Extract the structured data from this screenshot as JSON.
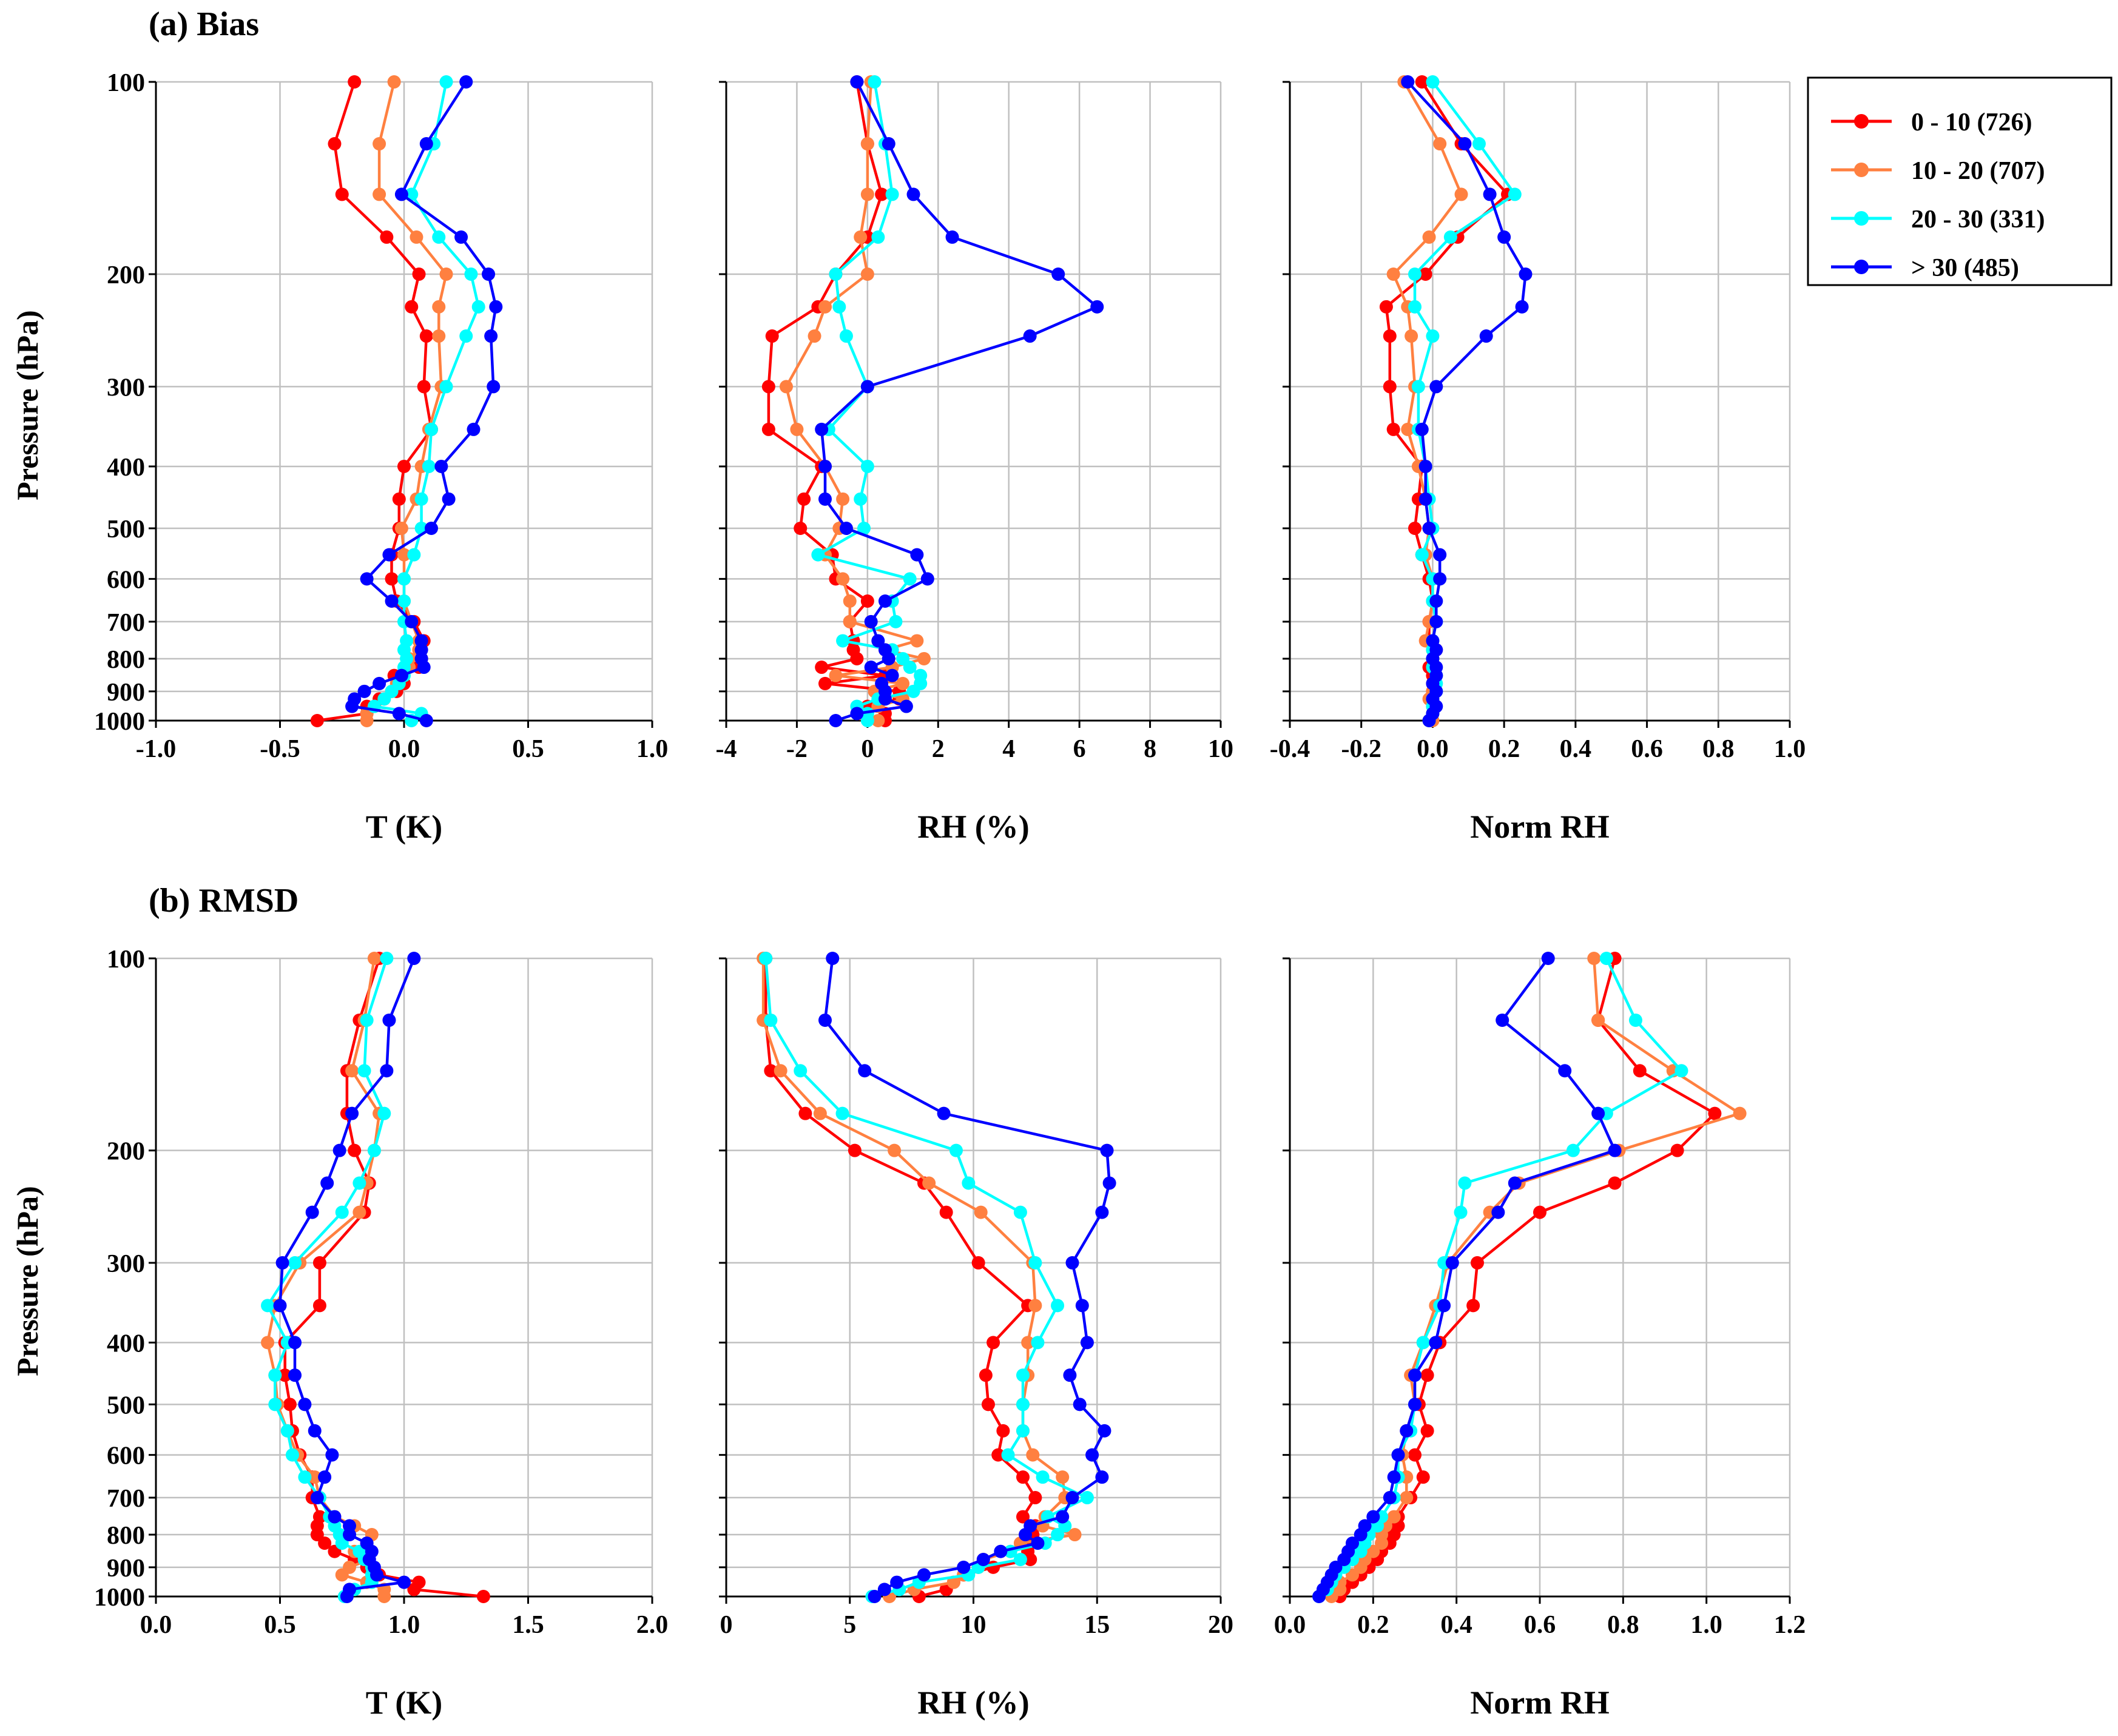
{
  "panel_titles": {
    "bias": "(a) Bias",
    "rmsd": "(b) RMSD"
  },
  "ylabel": "Pressure (hPa)",
  "pressure_levels": [
    100,
    125,
    150,
    175,
    200,
    225,
    250,
    300,
    350,
    400,
    450,
    500,
    550,
    600,
    650,
    700,
    750,
    775,
    800,
    825,
    850,
    875,
    900,
    925,
    950,
    975,
    1000
  ],
  "y_ticks": [
    100,
    200,
    300,
    400,
    500,
    600,
    700,
    800,
    900,
    1000
  ],
  "legend": [
    {
      "label": "0 - 10 (726)",
      "color": "#ff0000"
    },
    {
      "label": "10 - 20 (707)",
      "color": "#ff8040"
    },
    {
      "label": "20 - 30 (331)",
      "color": "#00ffff"
    },
    {
      "label": "> 30 (485)",
      "color": "#0000ff"
    }
  ],
  "colors": {
    "series1": "#ff0000",
    "series2": "#ff8040",
    "series3": "#00ffff",
    "series4": "#0000ff",
    "grid": "#c0c0c0",
    "axis": "#000000"
  },
  "chart_data": [
    {
      "type": "line",
      "row": 0,
      "col": 0,
      "xlabel": "T (K)",
      "xlim": [
        -1.0,
        1.0
      ],
      "xticks": [
        -1.0,
        -0.5,
        0.0,
        0.5,
        1.0
      ],
      "xtick_decimals": 1,
      "series": [
        {
          "name": "0 - 10 (726)",
          "values": [
            -0.2,
            -0.28,
            -0.25,
            -0.07,
            0.06,
            0.03,
            0.09,
            0.08,
            0.11,
            0.0,
            -0.02,
            -0.02,
            -0.05,
            -0.05,
            -0.03,
            0.04,
            0.08,
            0.06,
            0.07,
            0.06,
            -0.04,
            0.0,
            -0.03,
            -0.1,
            -0.15,
            -0.15,
            -0.35
          ]
        },
        {
          "name": "10 - 20 (707)",
          "values": [
            -0.04,
            -0.1,
            -0.1,
            0.05,
            0.17,
            0.14,
            0.14,
            0.15,
            0.1,
            0.07,
            0.05,
            -0.01,
            0.0,
            0.0,
            0.0,
            0.03,
            0.06,
            0.06,
            0.02,
            0.02,
            -0.01,
            -0.03,
            -0.05,
            -0.08,
            -0.12,
            -0.15,
            -0.15
          ]
        },
        {
          "name": "20 - 30 (331)",
          "values": [
            0.17,
            0.12,
            0.03,
            0.14,
            0.27,
            0.3,
            0.25,
            0.17,
            0.11,
            0.1,
            0.07,
            0.07,
            0.04,
            0.0,
            0.0,
            0.0,
            0.01,
            0.0,
            0.01,
            0.0,
            0.0,
            -0.02,
            -0.05,
            -0.08,
            -0.12,
            0.07,
            0.03
          ]
        },
        {
          "name": "> 30 (485)",
          "values": [
            0.25,
            0.09,
            -0.01,
            0.23,
            0.34,
            0.37,
            0.35,
            0.36,
            0.28,
            0.15,
            0.18,
            0.11,
            -0.06,
            -0.15,
            -0.05,
            0.03,
            0.07,
            0.07,
            0.07,
            0.08,
            -0.01,
            -0.1,
            -0.16,
            -0.2,
            -0.21,
            -0.02,
            0.09
          ]
        }
      ]
    },
    {
      "type": "line",
      "row": 0,
      "col": 1,
      "xlabel": "RH (%)",
      "xlim": [
        -4,
        10
      ],
      "xticks": [
        -4,
        -2,
        0,
        2,
        4,
        6,
        8,
        10
      ],
      "xtick_decimals": 0,
      "series": [
        {
          "name": "0 - 10 (726)",
          "values": [
            -0.3,
            0.0,
            0.4,
            0.0,
            -0.9,
            -1.4,
            -2.7,
            -2.8,
            -2.8,
            -1.3,
            -1.8,
            -1.9,
            -1.0,
            -0.9,
            0.0,
            -0.5,
            -0.4,
            -0.4,
            -0.3,
            -1.3,
            0.5,
            -1.2,
            0.9,
            0.9,
            0.0,
            0.5,
            0.5
          ]
        },
        {
          "name": "10 - 20 (707)",
          "values": [
            0.1,
            0.0,
            0.0,
            -0.2,
            0.0,
            -1.2,
            -1.5,
            -2.3,
            -2.0,
            -1.2,
            -0.7,
            -0.8,
            -1.2,
            -0.7,
            -0.5,
            -0.5,
            1.4,
            0.5,
            1.6,
            0.7,
            -0.9,
            1.0,
            0.2,
            1.0,
            0.3,
            -0.2,
            0.3
          ]
        },
        {
          "name": "20 - 30 (331)",
          "values": [
            0.2,
            0.5,
            0.7,
            0.3,
            -0.9,
            -0.8,
            -0.6,
            0.0,
            -1.1,
            0.0,
            -0.2,
            -0.1,
            -1.4,
            1.2,
            0.7,
            0.8,
            -0.7,
            0.7,
            1.0,
            1.2,
            1.5,
            1.5,
            1.3,
            0.3,
            -0.3,
            0.0,
            0.0
          ]
        },
        {
          "name": "> 30 (485)",
          "values": [
            -0.3,
            0.6,
            1.3,
            2.4,
            5.4,
            6.5,
            4.6,
            0.0,
            -1.3,
            -1.2,
            -1.2,
            -0.6,
            1.4,
            1.7,
            0.5,
            0.1,
            0.3,
            0.5,
            0.6,
            0.1,
            0.7,
            0.4,
            0.5,
            0.5,
            1.1,
            -0.3,
            -0.9
          ]
        }
      ]
    },
    {
      "type": "line",
      "row": 0,
      "col": 2,
      "xlabel": "Norm RH",
      "xlim": [
        -0.4,
        1.0
      ],
      "xticks": [
        -0.4,
        -0.2,
        0.0,
        0.2,
        0.4,
        0.6,
        0.8,
        1.0
      ],
      "xtick_decimals": 1,
      "series": [
        {
          "name": "0 - 10 (726)",
          "values": [
            -0.03,
            0.08,
            0.21,
            0.07,
            -0.02,
            -0.13,
            -0.12,
            -0.12,
            -0.11,
            -0.03,
            -0.04,
            -0.05,
            -0.03,
            -0.01,
            0.0,
            -0.01,
            -0.01,
            0.0,
            0.0,
            -0.01,
            0.0,
            0.0,
            0.0,
            0.0,
            0.0,
            0.0,
            -0.01
          ]
        },
        {
          "name": "10 - 20 (707)",
          "values": [
            -0.08,
            0.02,
            0.08,
            -0.01,
            -0.11,
            -0.07,
            -0.06,
            -0.05,
            -0.07,
            -0.04,
            -0.02,
            -0.01,
            -0.02,
            0.0,
            0.0,
            -0.01,
            -0.02,
            0.01,
            0.0,
            0.0,
            0.01,
            0.0,
            0.0,
            -0.01,
            0.0,
            0.0,
            0.0
          ]
        },
        {
          "name": "20 - 30 (331)",
          "values": [
            0.0,
            0.13,
            0.23,
            0.05,
            -0.05,
            -0.05,
            0.0,
            -0.04,
            -0.04,
            -0.02,
            -0.01,
            0.0,
            -0.03,
            0.0,
            0.0,
            0.01,
            0.0,
            0.0,
            0.0,
            0.0,
            0.01,
            0.01,
            0.01,
            0.0,
            0.0,
            0.0,
            -0.01
          ]
        },
        {
          "name": "> 30 (485)",
          "values": [
            -0.07,
            0.09,
            0.16,
            0.2,
            0.26,
            0.25,
            0.15,
            0.01,
            -0.03,
            -0.02,
            -0.02,
            -0.01,
            0.02,
            0.02,
            0.01,
            0.01,
            0.0,
            0.01,
            0.0,
            0.01,
            0.01,
            0.0,
            0.01,
            0.0,
            0.01,
            0.0,
            -0.01
          ]
        }
      ]
    },
    {
      "type": "line",
      "row": 1,
      "col": 0,
      "xlabel": "T (K)",
      "xlim": [
        0.0,
        2.0
      ],
      "xticks": [
        0.0,
        0.5,
        1.0,
        1.5,
        2.0
      ],
      "xtick_decimals": 1,
      "series": [
        {
          "name": "0 - 10 (726)",
          "values": [
            0.9,
            0.82,
            0.77,
            0.77,
            0.8,
            0.86,
            0.84,
            0.66,
            0.66,
            0.52,
            0.52,
            0.54,
            0.55,
            0.58,
            0.63,
            0.63,
            0.66,
            0.65,
            0.65,
            0.68,
            0.72,
            0.8,
            0.85,
            0.9,
            1.06,
            1.04,
            1.32
          ]
        },
        {
          "name": "10 - 20 (707)",
          "values": [
            0.88,
            0.84,
            0.79,
            0.9,
            0.88,
            0.85,
            0.82,
            0.58,
            0.48,
            0.45,
            0.48,
            0.49,
            0.53,
            0.57,
            0.64,
            0.66,
            0.72,
            0.8,
            0.87,
            0.85,
            0.8,
            0.86,
            0.78,
            0.75,
            0.85,
            0.92,
            0.92
          ]
        },
        {
          "name": "20 - 30 (331)",
          "values": [
            0.93,
            0.85,
            0.84,
            0.92,
            0.88,
            0.82,
            0.75,
            0.56,
            0.45,
            0.53,
            0.48,
            0.48,
            0.53,
            0.55,
            0.6,
            0.66,
            0.7,
            0.72,
            0.74,
            0.75,
            0.82,
            0.84,
            0.87,
            0.87,
            0.87,
            0.8,
            0.76
          ]
        },
        {
          "name": "> 30 (485)",
          "values": [
            1.04,
            0.94,
            0.93,
            0.79,
            0.74,
            0.69,
            0.63,
            0.51,
            0.5,
            0.56,
            0.56,
            0.6,
            0.64,
            0.71,
            0.68,
            0.65,
            0.72,
            0.78,
            0.78,
            0.85,
            0.87,
            0.86,
            0.88,
            0.89,
            1.0,
            0.78,
            0.77
          ]
        }
      ]
    },
    {
      "type": "line",
      "row": 1,
      "col": 1,
      "xlabel": "RH (%)",
      "xlim": [
        0,
        20
      ],
      "xticks": [
        0,
        5,
        10,
        15,
        20
      ],
      "xtick_decimals": 0,
      "series": [
        {
          "name": "0 - 10 (726)",
          "values": [
            1.6,
            1.6,
            1.8,
            3.2,
            5.2,
            8.0,
            8.9,
            10.2,
            12.2,
            10.8,
            10.5,
            10.6,
            11.2,
            11.0,
            12.0,
            12.5,
            12.0,
            12.5,
            12.4,
            12.3,
            12.2,
            12.3,
            10.8,
            9.6,
            9.2,
            8.9,
            7.8
          ]
        },
        {
          "name": "10 - 20 (707)",
          "values": [
            1.5,
            1.5,
            2.2,
            3.8,
            6.8,
            8.2,
            10.3,
            12.4,
            12.5,
            12.2,
            12.2,
            12.0,
            12.0,
            12.4,
            13.6,
            13.7,
            12.9,
            12.8,
            14.1,
            11.9,
            11.5,
            10.4,
            10.2,
            9.6,
            9.2,
            7.6,
            6.6
          ]
        },
        {
          "name": "20 - 30 (331)",
          "values": [
            1.6,
            1.8,
            3.0,
            4.7,
            9.3,
            9.8,
            11.9,
            12.5,
            13.4,
            12.6,
            12.0,
            12.0,
            12.0,
            11.4,
            12.8,
            14.6,
            13.0,
            13.7,
            13.4,
            12.9,
            11.5,
            11.9,
            10.2,
            9.8,
            7.8,
            7.0,
            5.9
          ]
        },
        {
          "name": "> 30 (485)",
          "values": [
            4.3,
            4.0,
            5.6,
            8.8,
            15.4,
            15.5,
            15.2,
            14.0,
            14.4,
            14.6,
            13.9,
            14.3,
            15.3,
            14.8,
            15.2,
            14.0,
            13.6,
            12.3,
            12.1,
            12.6,
            11.1,
            10.4,
            9.6,
            8.0,
            6.9,
            6.4,
            6.0
          ]
        }
      ]
    },
    {
      "type": "line",
      "row": 1,
      "col": 2,
      "xlabel": "Norm RH",
      "xlim": [
        0.0,
        1.2
      ],
      "xticks": [
        0.0,
        0.2,
        0.4,
        0.6,
        0.8,
        1.0,
        1.2
      ],
      "xtick_decimals": 1,
      "series": [
        {
          "name": "0 - 10 (726)",
          "values": [
            0.78,
            0.74,
            0.84,
            1.02,
            0.93,
            0.78,
            0.6,
            0.45,
            0.44,
            0.36,
            0.33,
            0.31,
            0.33,
            0.3,
            0.32,
            0.29,
            0.26,
            0.26,
            0.25,
            0.24,
            0.22,
            0.21,
            0.19,
            0.17,
            0.15,
            0.13,
            0.12
          ]
        },
        {
          "name": "10 - 20 (707)",
          "values": [
            0.73,
            0.74,
            0.92,
            1.08,
            0.79,
            0.55,
            0.48,
            0.38,
            0.35,
            0.32,
            0.29,
            0.3,
            0.28,
            0.27,
            0.28,
            0.28,
            0.25,
            0.23,
            0.22,
            0.22,
            0.2,
            0.18,
            0.17,
            0.15,
            0.12,
            0.12,
            0.1
          ]
        },
        {
          "name": "20 - 30 (331)",
          "values": [
            0.76,
            0.83,
            0.94,
            0.76,
            0.68,
            0.42,
            0.41,
            0.37,
            0.36,
            0.32,
            0.3,
            0.3,
            0.29,
            0.26,
            0.26,
            0.25,
            0.22,
            0.21,
            0.19,
            0.18,
            0.17,
            0.15,
            0.13,
            0.11,
            0.1,
            0.09,
            0.07
          ]
        },
        {
          "name": "> 30 (485)",
          "values": [
            0.62,
            0.51,
            0.66,
            0.74,
            0.78,
            0.54,
            0.5,
            0.39,
            0.37,
            0.35,
            0.3,
            0.3,
            0.28,
            0.26,
            0.25,
            0.24,
            0.2,
            0.18,
            0.17,
            0.15,
            0.14,
            0.13,
            0.11,
            0.1,
            0.09,
            0.08,
            0.07
          ]
        }
      ]
    }
  ]
}
